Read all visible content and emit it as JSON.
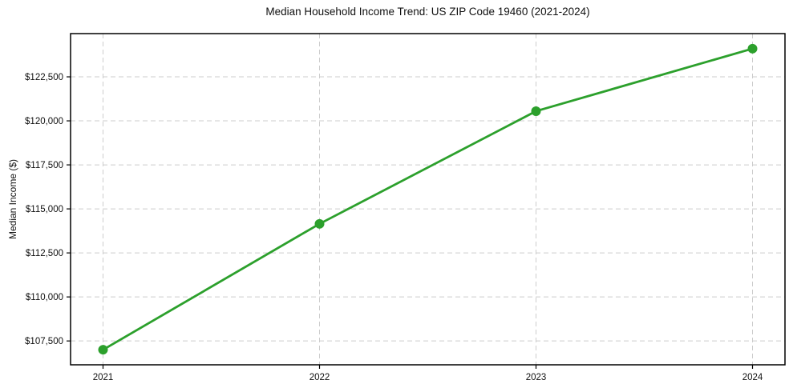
{
  "chart_data": {
    "type": "line",
    "title": "Median Household Income Trend: US ZIP Code 19460 (2021-2024)",
    "xlabel": "",
    "ylabel": "Median Income ($)",
    "categories": [
      "2021",
      "2022",
      "2023",
      "2024"
    ],
    "x": [
      2021,
      2022,
      2023,
      2024
    ],
    "series": [
      {
        "name": "Median Household Income",
        "color": "#2ca02c",
        "marker": "circle",
        "values": [
          107000,
          114150,
          120550,
          124100
        ]
      }
    ],
    "yticks": {
      "values": [
        107500,
        110000,
        112500,
        115000,
        117500,
        120000,
        122500
      ],
      "labels": [
        "$107,500",
        "$110,000",
        "$112,500",
        "$115,000",
        "$117,500",
        "$120,000",
        "$122,500"
      ]
    },
    "xlim": [
      2020.85,
      2024.15
    ],
    "ylim": [
      106145,
      124955
    ],
    "grid": true,
    "grid_style": "dashed",
    "grid_color": "#cccccc",
    "axis_color": "#000000",
    "background": "#ffffff",
    "legend": "none"
  }
}
